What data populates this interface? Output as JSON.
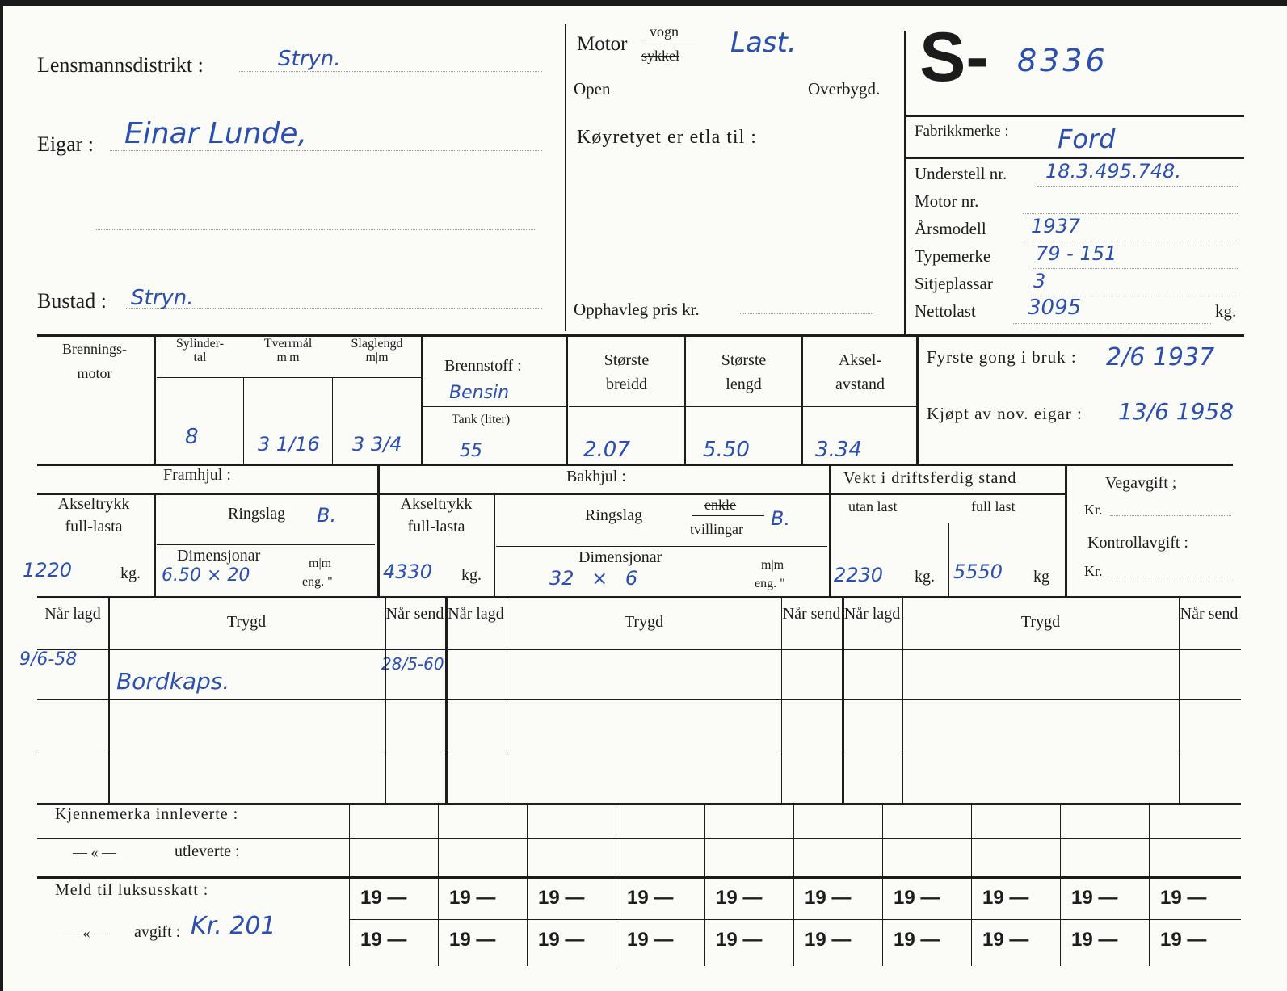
{
  "header": {
    "lensmannsdistrikt_label": "Lensmannsdistrikt :",
    "lensmannsdistrikt_value": "Stryn.",
    "eigar_label": "Eigar :",
    "eigar_value": "Einar Lunde,",
    "bustad_label": "Bustad :",
    "bustad_value": "Stryn.",
    "motor_label": "Motor",
    "vogn": "vogn",
    "sykkel": "sykkel",
    "motor_value": "Last.",
    "open": "Open",
    "overbygd": "Overbygd.",
    "etla_label": "Køyretyet er etla til :",
    "pris_label": "Opphavleg pris kr.",
    "reg_prefix": "S-",
    "reg_number": "8336"
  },
  "specs": {
    "fabrikkmerke_label": "Fabrikkmerke :",
    "fabrikkmerke": "Ford",
    "understell_label": "Understell nr.",
    "understell": "18.3.495.748.",
    "motor_nr_label": "Motor nr.",
    "arsmodell_label": "Årsmodell",
    "arsmodell": "1937",
    "typemerke_label": "Typemerke",
    "typemerke": "79 - 151",
    "sitjeplassar_label": "Sitjeplassar",
    "sitjeplassar": "3",
    "nettolast_label": "Nettolast",
    "nettolast": "3095",
    "kg": "kg."
  },
  "engine": {
    "brennings": "Brennings-",
    "motor": "motor",
    "sylinder_label": "Sylinder-",
    "tal": "tal",
    "sylinder": "8",
    "tverrmal_label": "Tverrmål",
    "mm": "m|m",
    "tverrmal": "3 1/16",
    "slaglengd_label": "Slaglengd",
    "slaglengd": "3 3/4",
    "brennstoff_label": "Brennstoff :",
    "brennstoff": "Bensin",
    "tank_label": "Tank (liter)",
    "tank": "55",
    "breidd_label1": "Største",
    "breidd_label2": "breidd",
    "breidd": "2.07",
    "lengd_label1": "Største",
    "lengd_label2": "lengd",
    "lengd": "5.50",
    "aksel_label1": "Aksel-",
    "aksel_label2": "avstand",
    "aksel": "3.34",
    "fyrste_label": "Fyrste gong i bruk :",
    "fyrste": "2/6 1937",
    "kjopt_label": "Kjøpt av nov. eigar :",
    "kjopt": "13/6 1958"
  },
  "wheels": {
    "framhjul": "Framhjul :",
    "bakhjul": "Bakhjul :",
    "akseltrykk1": "Akseltrykk",
    "akseltrykk2": "full-lasta",
    "ringslag": "Ringslag",
    "dimensjonar": "Dimensjonar",
    "mm": "m|m",
    "eng": "eng. \"",
    "kg": "kg.",
    "kg_plain": "kg",
    "enkle": "enkle",
    "tvillingar": "tvillingar",
    "fram_akseltrykk": "1220",
    "fram_ringslag": "B.",
    "fram_dim": "6.50 × 20",
    "bak_akseltrykk": "4330",
    "bak_ringslag": "B.",
    "bak_dim": "32 × 6",
    "vekt_label": "Vekt i driftsferdig stand",
    "utan_last_label": "utan last",
    "full_last_label": "full last",
    "utan_last": "2230",
    "full_last": "5550",
    "vegavgift": "Vegavgift ;",
    "kr": "Kr.",
    "kontrollavgift": "Kontrollavgift :"
  },
  "insurance": {
    "nar_lagd": "Når lagd",
    "trygd": "Trygd",
    "nar_send": "Når send",
    "entries": [
      {
        "lagd": "9/6-58",
        "trygd": "Bordkaps.",
        "send": "28/5-60"
      }
    ]
  },
  "footer": {
    "kjennemerka": "Kjennemerka innleverte :",
    "ditto": "— « —",
    "utleverte": "utleverte :",
    "luksus": "Meld til luksusskatt :",
    "avgift": "avgift :",
    "avgift_value": "Kr. 201",
    "year_prefix": "19 —"
  },
  "colors": {
    "ink": "#2a4fb0",
    "print": "#1c1c1c"
  }
}
